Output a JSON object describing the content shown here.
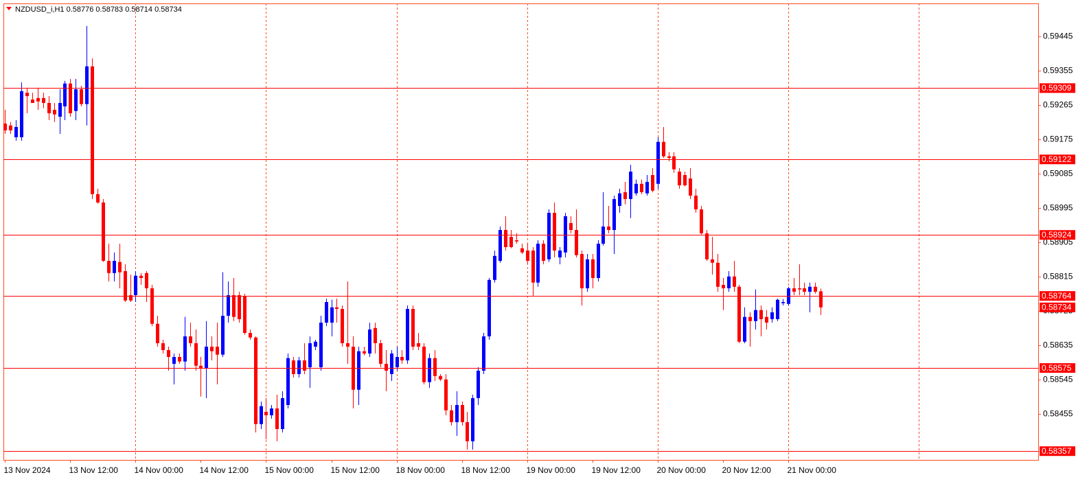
{
  "chart_data": {
    "type": "candlestick",
    "title": "NZDUSD_i,H1",
    "header_values": [
      0.58776,
      0.58783,
      0.58714,
      0.58734
    ],
    "up_color": "#0000ff",
    "down_color": "#ff0000",
    "frame_color": "#ff4a1c",
    "level_color": "#ff0000",
    "open": [
      0.59216,
      0.59211,
      0.5918,
      0.5918,
      0.59297,
      0.59279,
      0.59283,
      0.59283,
      0.5927,
      0.59252,
      0.59234,
      0.59261,
      0.59321,
      0.59249,
      0.59306,
      0.59267,
      0.59366,
      0.59031,
      0.59009,
      0.58856,
      0.58824,
      0.58853,
      0.58829,
      0.58766,
      0.58766,
      0.58817,
      0.58824,
      0.58784,
      0.58691,
      0.5864,
      0.58622,
      0.58586,
      0.58604,
      0.58592,
      0.58658,
      0.5864,
      0.58581,
      0.58574,
      0.58631,
      0.58631,
      0.5861,
      0.58712,
      0.58766,
      0.58766,
      0.58763,
      0.58667,
      0.58655,
      0.58428,
      0.5846,
      0.58451,
      0.58469,
      0.58415,
      0.58478,
      0.58595,
      0.58559,
      0.58595,
      0.58577,
      0.58631,
      0.58577,
      0.58694,
      0.58694,
      0.58734,
      0.5873,
      0.5864,
      0.58631,
      0.58518,
      0.58619,
      0.58613,
      0.5868,
      0.5864,
      0.58586,
      0.58559,
      0.58577,
      0.58604,
      0.58595,
      0.5873,
      0.5864,
      0.58631,
      0.58538,
      0.58601,
      0.58554,
      0.58545,
      0.58464,
      0.58433,
      0.58478,
      0.58433,
      0.58383,
      0.58496,
      0.58568,
      0.58658,
      0.58806,
      0.58856,
      0.58937,
      0.58919,
      0.5891,
      0.58889,
      0.58883,
      0.58883,
      0.58799,
      0.58901,
      0.5886,
      0.58982,
      0.58865,
      0.58878,
      0.58955,
      0.58937,
      0.58874,
      0.58784,
      0.5886,
      0.58811,
      0.58901,
      0.58946,
      0.58937,
      0.59,
      0.59036,
      0.59018,
      0.59033,
      0.59058,
      0.59033,
      0.59081,
      0.59058,
      0.59168,
      0.5913,
      0.5913,
      0.5909,
      0.59081,
      0.59072,
      0.59027,
      0.58991,
      0.58928,
      0.5886,
      0.58851,
      0.58793,
      0.58784,
      0.58815,
      0.58788,
      0.58644,
      0.58709,
      0.58698,
      0.58727,
      0.58709,
      0.58703,
      0.58703,
      0.58745,
      0.58743,
      0.58784,
      0.58784,
      0.58784,
      0.58775,
      0.58788,
      0.58776
    ],
    "high": [
      0.59252,
      0.5922,
      0.59225,
      0.59324,
      0.5931,
      0.59297,
      0.5931,
      0.59297,
      0.59288,
      0.5927,
      0.59306,
      0.59328,
      0.59333,
      0.59333,
      0.59315,
      0.59472,
      0.59387,
      0.59045,
      0.59018,
      0.58901,
      0.58878,
      0.58901,
      0.58847,
      0.5882,
      0.58829,
      0.58824,
      0.58829,
      0.58793,
      0.58712,
      0.58649,
      0.58631,
      0.58613,
      0.58613,
      0.58709,
      0.58694,
      0.58676,
      0.58604,
      0.58698,
      0.58658,
      0.58694,
      0.58826,
      0.58802,
      0.58811,
      0.58775,
      0.5877,
      0.58676,
      0.58658,
      0.58487,
      0.58496,
      0.58478,
      0.58505,
      0.58514,
      0.58613,
      0.58604,
      0.58604,
      0.5864,
      0.58658,
      0.58649,
      0.58712,
      0.58757,
      0.58754,
      0.58757,
      0.58739,
      0.58802,
      0.58658,
      0.58631,
      0.58631,
      0.58694,
      0.58694,
      0.58649,
      0.58622,
      0.58622,
      0.58631,
      0.58622,
      0.58739,
      0.58739,
      0.58667,
      0.5864,
      0.58613,
      0.58622,
      0.58559,
      0.58559,
      0.58478,
      0.58514,
      0.58487,
      0.5846,
      0.58505,
      0.58577,
      0.58667,
      0.58811,
      0.58883,
      0.58946,
      0.58973,
      0.58937,
      0.58928,
      0.58901,
      0.58901,
      0.58892,
      0.5891,
      0.5891,
      0.58991,
      0.59009,
      0.58892,
      0.58982,
      0.58973,
      0.58991,
      0.58883,
      0.58874,
      0.58874,
      0.5891,
      0.59036,
      0.59,
      0.59027,
      0.59045,
      0.59063,
      0.59108,
      0.59069,
      0.59069,
      0.59081,
      0.59099,
      0.5918,
      0.59207,
      0.59141,
      0.59141,
      0.59099,
      0.5909,
      0.59099,
      0.59045,
      0.59,
      0.58937,
      0.58919,
      0.58874,
      0.58811,
      0.58829,
      0.58856,
      0.58793,
      0.58734,
      0.58721,
      0.58781,
      0.58739,
      0.58727,
      0.58734,
      0.58757,
      0.58756,
      0.58788,
      0.58811,
      0.58847,
      0.58799,
      0.58799,
      0.58799,
      0.58783
    ],
    "low": [
      0.59189,
      0.59189,
      0.59171,
      0.59171,
      0.59243,
      0.5927,
      0.59252,
      0.59256,
      0.59225,
      0.5922,
      0.59189,
      0.59225,
      0.59234,
      0.59225,
      0.59261,
      0.59211,
      0.59018,
      0.59006,
      0.58853,
      0.58802,
      0.58802,
      0.58784,
      0.58748,
      0.58748,
      0.58748,
      0.58793,
      0.58748,
      0.58685,
      0.58631,
      0.58613,
      0.58568,
      0.58532,
      0.58586,
      0.58568,
      0.58631,
      0.58568,
      0.585,
      0.58496,
      0.58595,
      0.58532,
      0.58604,
      0.58694,
      0.58698,
      0.58694,
      0.58662,
      0.58649,
      0.58406,
      0.58415,
      0.58388,
      0.58442,
      0.58383,
      0.58406,
      0.58469,
      0.5855,
      0.5855,
      0.58559,
      0.58523,
      0.58622,
      0.58568,
      0.58685,
      0.58658,
      0.58694,
      0.58631,
      0.58586,
      0.58469,
      0.58478,
      0.58608,
      0.58604,
      0.58613,
      0.58577,
      0.58514,
      0.58541,
      0.58568,
      0.58586,
      0.58586,
      0.58622,
      0.58622,
      0.58532,
      0.58523,
      0.58541,
      0.58541,
      0.58451,
      0.58424,
      0.58397,
      0.58424,
      0.58361,
      0.58361,
      0.58478,
      0.58559,
      0.58649,
      0.58799,
      0.58851,
      0.58883,
      0.58889,
      0.58901,
      0.58874,
      0.58847,
      0.58763,
      0.58788,
      0.58847,
      0.58853,
      0.58865,
      0.58847,
      0.58865,
      0.58928,
      0.58865,
      0.58739,
      0.58775,
      0.58784,
      0.58802,
      0.58896,
      0.58928,
      0.58874,
      0.58982,
      0.59004,
      0.58968,
      0.59027,
      0.59031,
      0.59027,
      0.59036,
      0.59045,
      0.59126,
      0.59117,
      0.59087,
      0.59045,
      0.59051,
      0.59018,
      0.58982,
      0.58925,
      0.58856,
      0.5882,
      0.58775,
      0.58727,
      0.58775,
      0.58775,
      0.5864,
      0.5864,
      0.58631,
      0.58676,
      0.58658,
      0.58676,
      0.58694,
      0.58698,
      0.58739,
      0.58739,
      0.58766,
      0.58766,
      0.58766,
      0.58721,
      0.5877,
      0.58714
    ],
    "close": [
      0.59198,
      0.59198,
      0.59207,
      0.59301,
      0.59288,
      0.5927,
      0.59274,
      0.5927,
      0.59243,
      0.5924,
      0.5927,
      0.59321,
      0.59243,
      0.59306,
      0.59267,
      0.59366,
      0.59031,
      0.59009,
      0.58856,
      0.58824,
      0.58856,
      0.58826,
      0.58752,
      0.58752,
      0.58817,
      0.58811,
      0.58784,
      0.58691,
      0.5864,
      0.58622,
      0.58604,
      0.58604,
      0.58592,
      0.58658,
      0.5864,
      0.58581,
      0.58574,
      0.58631,
      0.58619,
      0.5861,
      0.58712,
      0.58766,
      0.58709,
      0.58703,
      0.58667,
      0.58655,
      0.58428,
      0.58475,
      0.58451,
      0.58469,
      0.58415,
      0.58496,
      0.58601,
      0.58559,
      0.58595,
      0.58568,
      0.5864,
      0.58644,
      0.58694,
      0.58748,
      0.58734,
      0.5873,
      0.5864,
      0.58631,
      0.58518,
      0.58619,
      0.58613,
      0.58676,
      0.5864,
      0.58586,
      0.58568,
      0.58613,
      0.58604,
      0.58595,
      0.5873,
      0.58631,
      0.58631,
      0.58538,
      0.58601,
      0.58554,
      0.58545,
      0.58464,
      0.58433,
      0.58478,
      0.58433,
      0.58383,
      0.58496,
      0.58568,
      0.58658,
      0.58806,
      0.58869,
      0.58937,
      0.58892,
      0.58892,
      0.58907,
      0.58878,
      0.58856,
      0.58799,
      0.58901,
      0.58856,
      0.58982,
      0.58883,
      0.58883,
      0.58973,
      0.58937,
      0.58871,
      0.58784,
      0.5886,
      0.58811,
      0.58901,
      0.58946,
      0.58937,
      0.59018,
      0.59033,
      0.59018,
      0.5909,
      0.59058,
      0.59036,
      0.59063,
      0.5904,
      0.59168,
      0.5913,
      0.59126,
      0.59096,
      0.59054,
      0.59054,
      0.59027,
      0.58991,
      0.58928,
      0.5886,
      0.58851,
      0.58788,
      0.58784,
      0.58815,
      0.58788,
      0.58644,
      0.58709,
      0.58698,
      0.58727,
      0.58703,
      0.58694,
      0.58721,
      0.58754,
      0.58748,
      0.58784,
      0.58775,
      0.58781,
      0.58775,
      0.58788,
      0.58775,
      0.58734
    ],
    "xlim": [
      -0.3,
      190
    ],
    "xticks": [
      {
        "value": 0,
        "label": "13 Nov 2024"
      },
      {
        "value": 12,
        "label": "13 Nov 12:00"
      },
      {
        "value": 24,
        "label": "14 Nov 00:00"
      },
      {
        "value": 36,
        "label": "14 Nov 12:00"
      },
      {
        "value": 48,
        "label": "15 Nov 00:00"
      },
      {
        "value": 60,
        "label": "15 Nov 12:00"
      },
      {
        "value": 72,
        "label": "18 Nov 00:00"
      },
      {
        "value": 84,
        "label": "18 Nov 12:00"
      },
      {
        "value": 96,
        "label": "19 Nov 00:00"
      },
      {
        "value": 108,
        "label": "19 Nov 12:00"
      },
      {
        "value": 120,
        "label": "20 Nov 00:00"
      },
      {
        "value": 132,
        "label": "20 Nov 12:00"
      },
      {
        "value": 144,
        "label": "21 Nov 00:00"
      }
    ],
    "vgrid": [
      24,
      48,
      72,
      96,
      120,
      144,
      168
    ],
    "ylim": [
      0.58334,
      0.59531
    ],
    "yticks": [
      0.59445,
      0.59355,
      0.59265,
      0.59175,
      0.59085,
      0.58995,
      0.58905,
      0.58815,
      0.58725,
      0.58635,
      0.58545,
      0.58455
    ],
    "levels": [
      0.59309,
      0.59122,
      0.58924,
      0.58764,
      0.58575,
      0.58357
    ],
    "last_price": 0.58734
  }
}
